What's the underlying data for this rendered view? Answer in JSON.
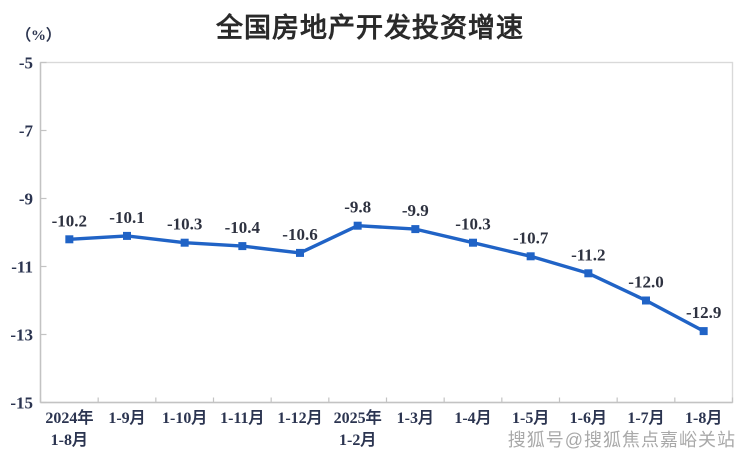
{
  "title": "全国房地产开发投资增速",
  "unit_label": "（%）",
  "watermark": "搜狐号@搜狐焦点嘉峪关站",
  "colors": {
    "line": "#2063C6",
    "marker": "#2063C6",
    "data_label_text": "#2e3240",
    "axis_label_text": "#2b3450",
    "title_text": "#2a2a2a",
    "axis_line": "#c3c3c3",
    "plot_border": "#d9d9d9",
    "watermark_text": "#a9a9a9"
  },
  "chart_data": {
    "type": "line",
    "title": "全国房地产开发投资增速",
    "ylabel": "（%）",
    "xlabel": "",
    "categories": [
      "2024年\n1-8月",
      "1-9月",
      "1-10月",
      "1-11月",
      "1-12月",
      "2025年\n1-2月",
      "1-3月",
      "1-4月",
      "1-5月",
      "1-6月",
      "1-7月",
      "1-8月"
    ],
    "values": [
      -10.2,
      -10.1,
      -10.3,
      -10.4,
      -10.6,
      -9.8,
      -9.9,
      -10.3,
      -10.7,
      -11.2,
      -12.0,
      -12.9
    ],
    "point_labels": [
      "-10.2",
      "-10.1",
      "-10.3",
      "-10.4",
      "-10.6",
      "-9.8",
      "-9.9",
      "-10.3",
      "-10.7",
      "-11.2",
      "-12.0",
      "-12.9"
    ],
    "series_name": "全国房地产开发投资增速",
    "ylim": [
      -15,
      -5
    ],
    "yticks": [
      -5,
      -7,
      -9,
      -11,
      -13,
      -15
    ],
    "grid": false,
    "legend_position": "none",
    "marker_shape": "square"
  }
}
